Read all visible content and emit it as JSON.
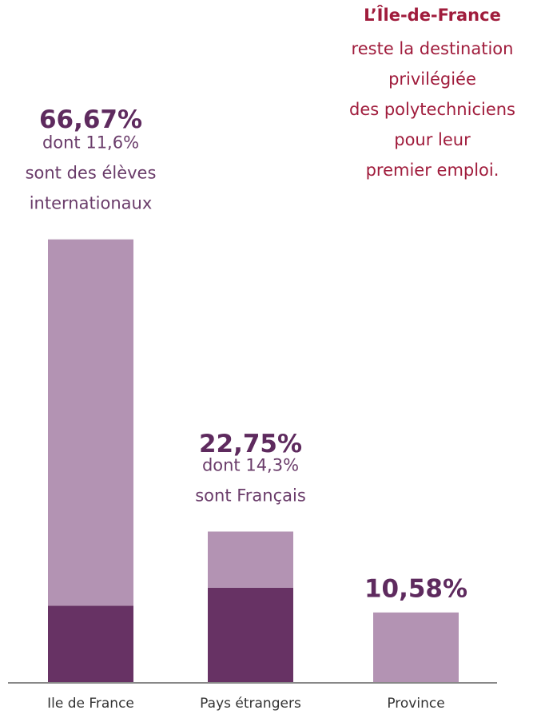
{
  "chart_data": {
    "type": "stacked-bar",
    "heading": "L’Île-de-France",
    "subheading": [
      "reste la destination",
      "privilégiée",
      "des polytechniciens",
      "pour leur",
      "premier emploi."
    ],
    "categories": [
      "Ile de France",
      "Pays étrangers",
      "Province"
    ],
    "series": [
      {
        "color": "#673264",
        "values": [
          11.6,
          14.3,
          0
        ]
      },
      {
        "color": "#b393b3",
        "values": [
          55.07,
          8.45,
          10.58
        ]
      }
    ],
    "totals": [
      66.67,
      22.75,
      10.58
    ],
    "total_labels": [
      "66,67%",
      "22,75%",
      "10,58%"
    ],
    "annotations": [
      [
        "dont 11,6%",
        "sont des élèves",
        "internationaux"
      ],
      [
        "dont 14,3%",
        "sont Français"
      ],
      []
    ],
    "ylim": [
      0,
      70
    ]
  }
}
